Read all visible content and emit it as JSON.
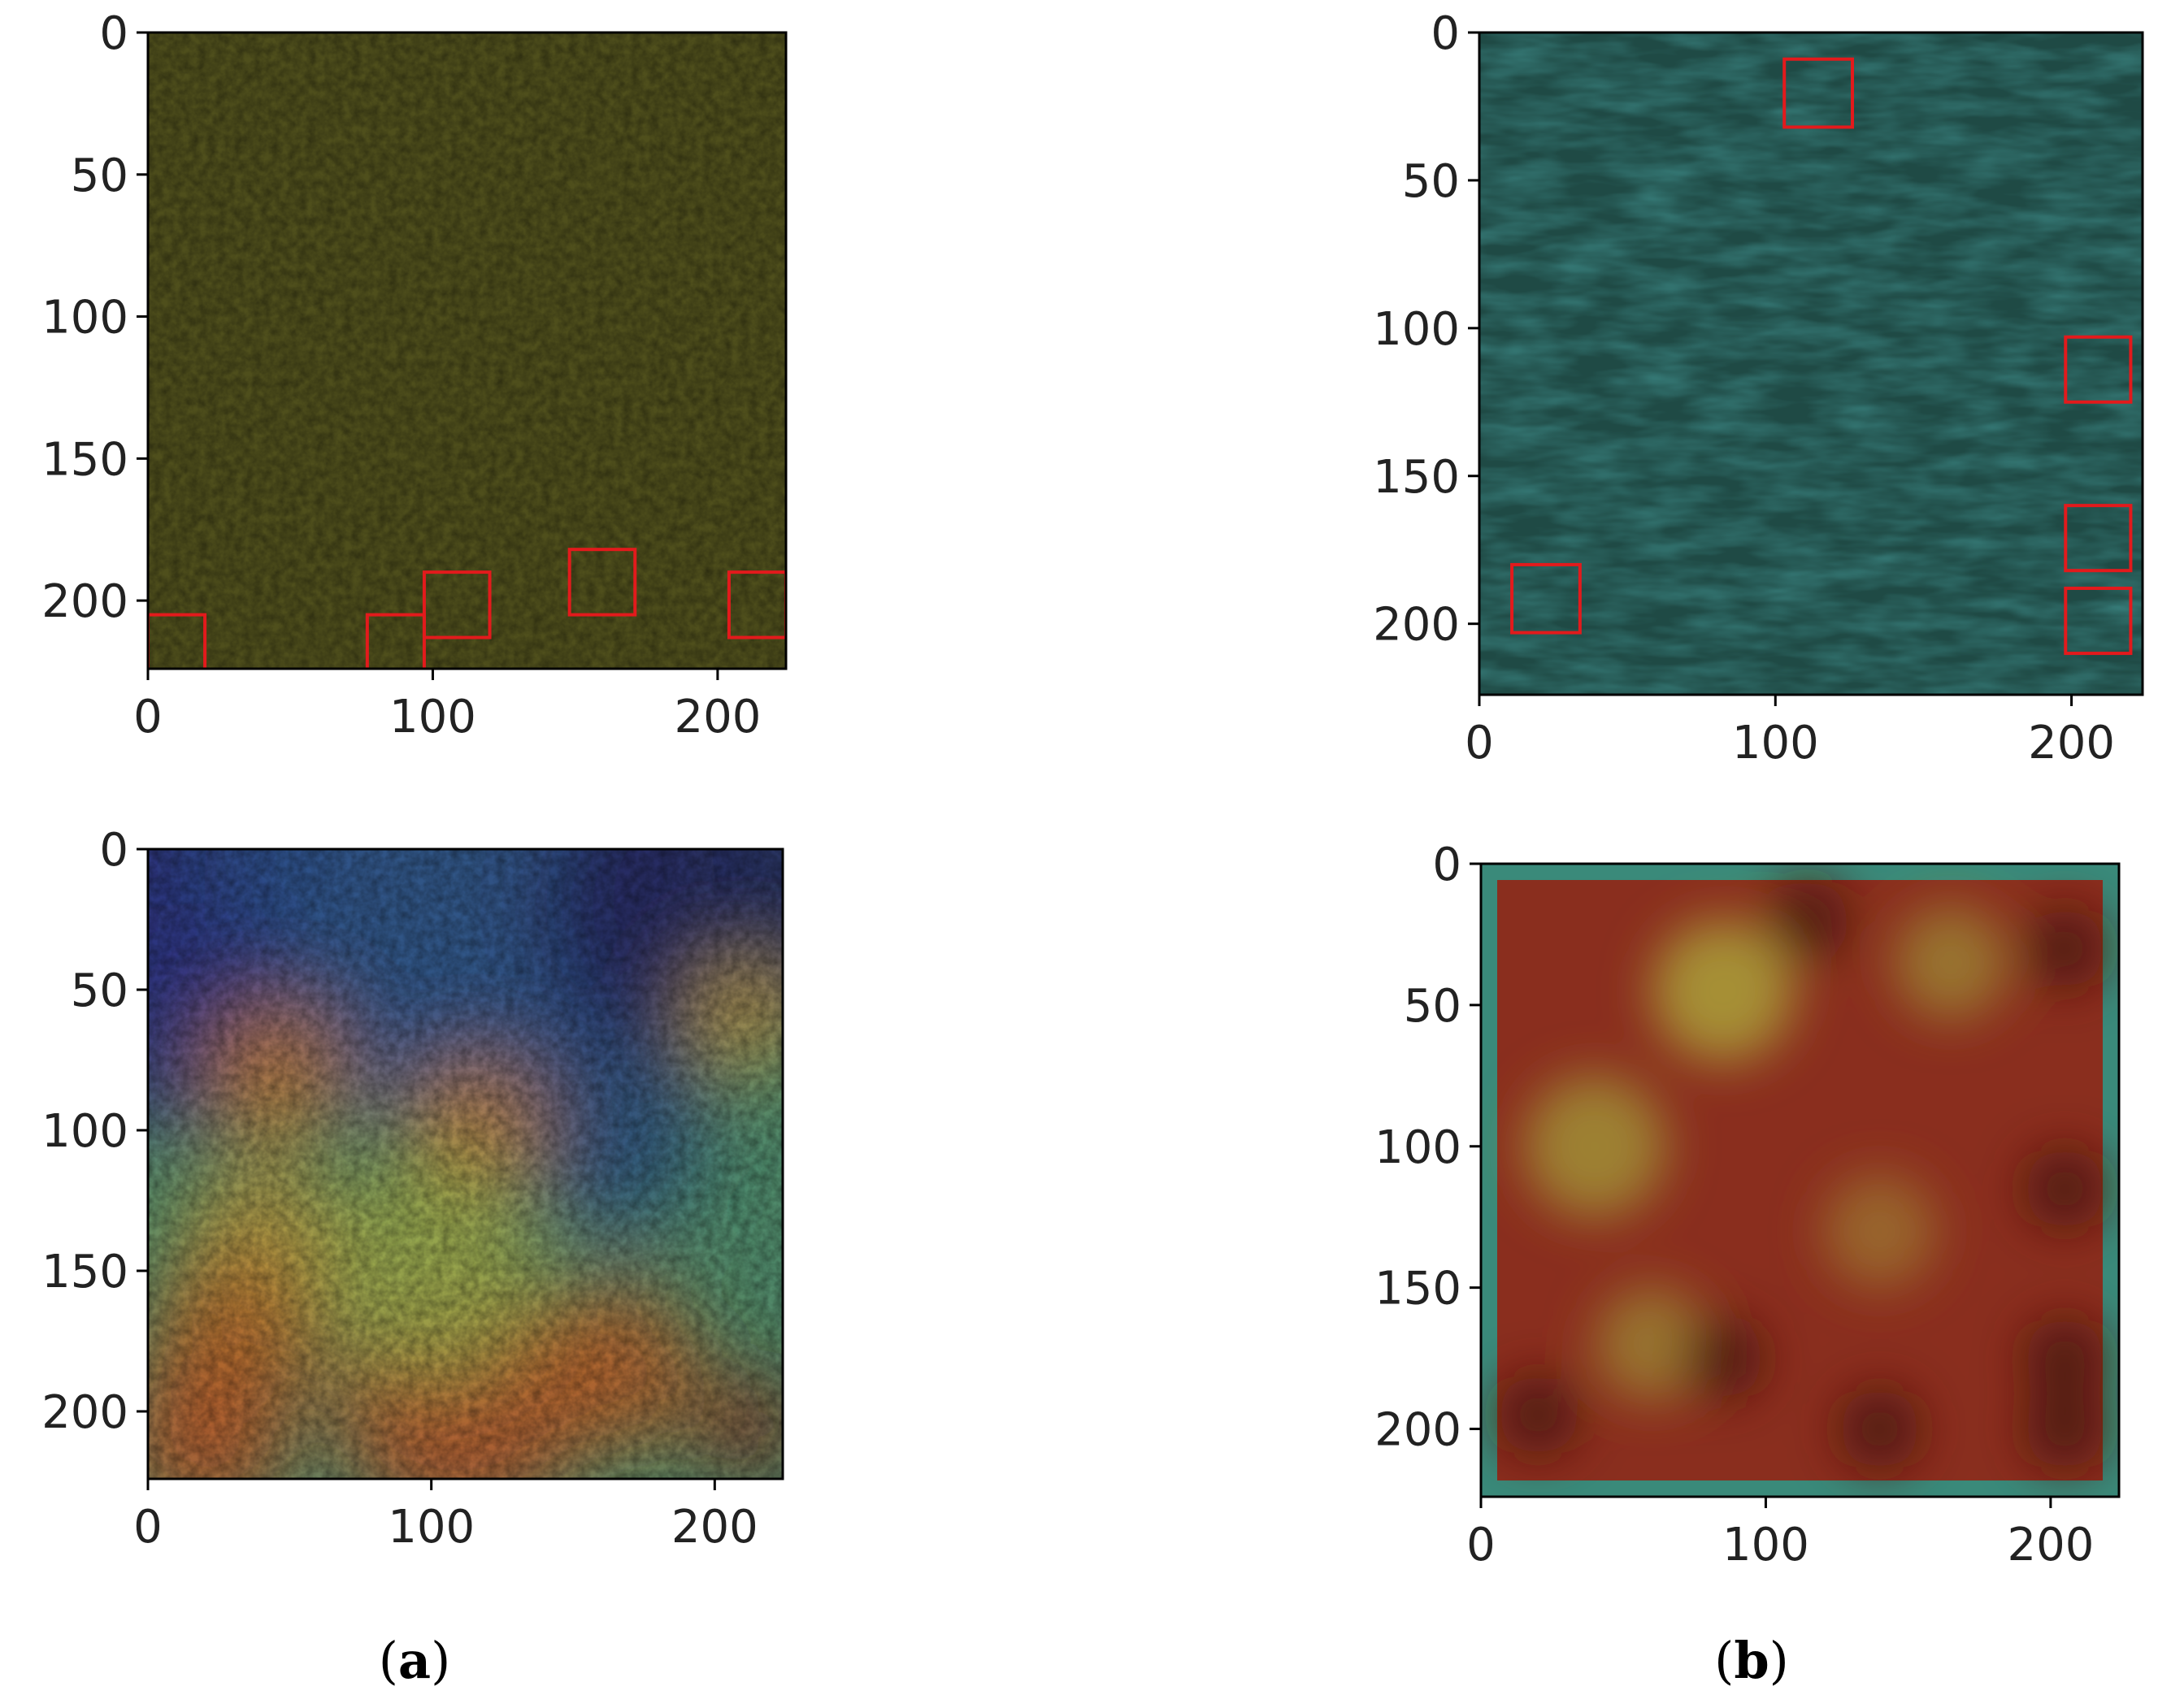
{
  "figure": {
    "captions": [
      {
        "open": "(",
        "letter": "a",
        "close": ")"
      },
      {
        "open": "(",
        "letter": "b",
        "close": ")"
      }
    ]
  },
  "chart_data": [
    {
      "type": "heatmap",
      "panel": "a-top",
      "title": "",
      "xlabel": "",
      "ylabel": "",
      "xlim": [
        0,
        224
      ],
      "ylim": [
        224,
        0
      ],
      "xticks": [
        0,
        100,
        200
      ],
      "yticks": [
        0,
        50,
        100,
        150,
        200
      ],
      "base_color": "#4f4f1c",
      "highlight_boxes": [
        {
          "x": [
            0,
            20
          ],
          "y": [
            205,
            225
          ]
        },
        {
          "x": [
            77,
            97
          ],
          "y": [
            205,
            225
          ]
        },
        {
          "x": [
            97,
            120
          ],
          "y": [
            190,
            213
          ]
        },
        {
          "x": [
            148,
            171
          ],
          "y": [
            182,
            205
          ]
        },
        {
          "x": [
            204,
            224
          ],
          "y": [
            190,
            213
          ]
        }
      ],
      "box_color": "#e31a1c"
    },
    {
      "type": "heatmap",
      "panel": "b-top",
      "title": "",
      "xlabel": "",
      "ylabel": "",
      "xlim": [
        0,
        224
      ],
      "ylim": [
        224,
        0
      ],
      "xticks": [
        0,
        100,
        200
      ],
      "yticks": [
        0,
        50,
        100,
        150,
        200
      ],
      "base_color": "#1f4a45",
      "highlight_boxes": [
        {
          "x": [
            103,
            126
          ],
          "y": [
            9,
            32
          ]
        },
        {
          "x": [
            198,
            220
          ],
          "y": [
            103,
            125
          ]
        },
        {
          "x": [
            198,
            220
          ],
          "y": [
            160,
            182
          ]
        },
        {
          "x": [
            198,
            220
          ],
          "y": [
            188,
            210
          ]
        },
        {
          "x": [
            11,
            34
          ],
          "y": [
            180,
            203
          ]
        }
      ],
      "box_color": "#e31a1c"
    },
    {
      "type": "heatmap",
      "panel": "a-bottom",
      "title": "",
      "xlabel": "",
      "ylabel": "",
      "xlim": [
        0,
        224
      ],
      "ylim": [
        224,
        0
      ],
      "xticks": [
        0,
        100,
        200
      ],
      "yticks": [
        0,
        50,
        100,
        150,
        200
      ],
      "base_color": "#4f8a6a",
      "hotspots": [
        {
          "x": 0,
          "y": 0,
          "r": 60,
          "color": "#2a2a7a"
        },
        {
          "x": 110,
          "y": 10,
          "r": 90,
          "color": "#2e4f8a"
        },
        {
          "x": 200,
          "y": 20,
          "r": 60,
          "color": "#24285e"
        },
        {
          "x": 10,
          "y": 60,
          "r": 40,
          "color": "#2d3480"
        },
        {
          "x": 160,
          "y": 100,
          "r": 35,
          "color": "#2e4f80"
        },
        {
          "x": 45,
          "y": 80,
          "r": 25,
          "color": "#c07a32"
        },
        {
          "x": 115,
          "y": 100,
          "r": 25,
          "color": "#c08035"
        },
        {
          "x": 210,
          "y": 60,
          "r": 20,
          "color": "#c0a040"
        },
        {
          "x": 40,
          "y": 140,
          "r": 30,
          "color": "#b89a40"
        },
        {
          "x": 30,
          "y": 175,
          "r": 30,
          "color": "#b86a2a"
        },
        {
          "x": 110,
          "y": 195,
          "r": 45,
          "color": "#b8542a"
        },
        {
          "x": 165,
          "y": 185,
          "r": 30,
          "color": "#b8602a"
        },
        {
          "x": 20,
          "y": 210,
          "r": 30,
          "color": "#b85a2a"
        },
        {
          "x": 212,
          "y": 205,
          "r": 18,
          "color": "#8a3020"
        },
        {
          "x": 100,
          "y": 150,
          "r": 40,
          "color": "#9aa84a"
        }
      ]
    },
    {
      "type": "heatmap",
      "panel": "b-bottom",
      "title": "",
      "xlabel": "",
      "ylabel": "",
      "xlim": [
        0,
        224
      ],
      "ylim": [
        224,
        0
      ],
      "xticks": [
        0,
        100,
        200
      ],
      "yticks": [
        0,
        50,
        100,
        150,
        200
      ],
      "base_color": "#8a2e1e",
      "border_color": "#3a8a7a",
      "hotspots": [
        {
          "x": 85,
          "y": 45,
          "r": 25,
          "color": "#a89a38"
        },
        {
          "x": 40,
          "y": 100,
          "r": 25,
          "color": "#a08a34"
        },
        {
          "x": 165,
          "y": 35,
          "r": 20,
          "color": "#9a7a30"
        },
        {
          "x": 140,
          "y": 130,
          "r": 20,
          "color": "#9a6a2c"
        },
        {
          "x": 60,
          "y": 170,
          "r": 20,
          "color": "#9a7a30"
        },
        {
          "x": 115,
          "y": 20,
          "r": 14,
          "color": "#4a1510"
        },
        {
          "x": 205,
          "y": 30,
          "r": 14,
          "color": "#4a1510"
        },
        {
          "x": 205,
          "y": 115,
          "r": 14,
          "color": "#4a1510"
        },
        {
          "x": 205,
          "y": 175,
          "r": 14,
          "color": "#4a1510"
        },
        {
          "x": 205,
          "y": 200,
          "r": 14,
          "color": "#4a1510"
        },
        {
          "x": 20,
          "y": 195,
          "r": 14,
          "color": "#4a1510"
        },
        {
          "x": 85,
          "y": 175,
          "r": 14,
          "color": "#4a1510"
        },
        {
          "x": 140,
          "y": 200,
          "r": 14,
          "color": "#4a1510"
        }
      ]
    }
  ]
}
